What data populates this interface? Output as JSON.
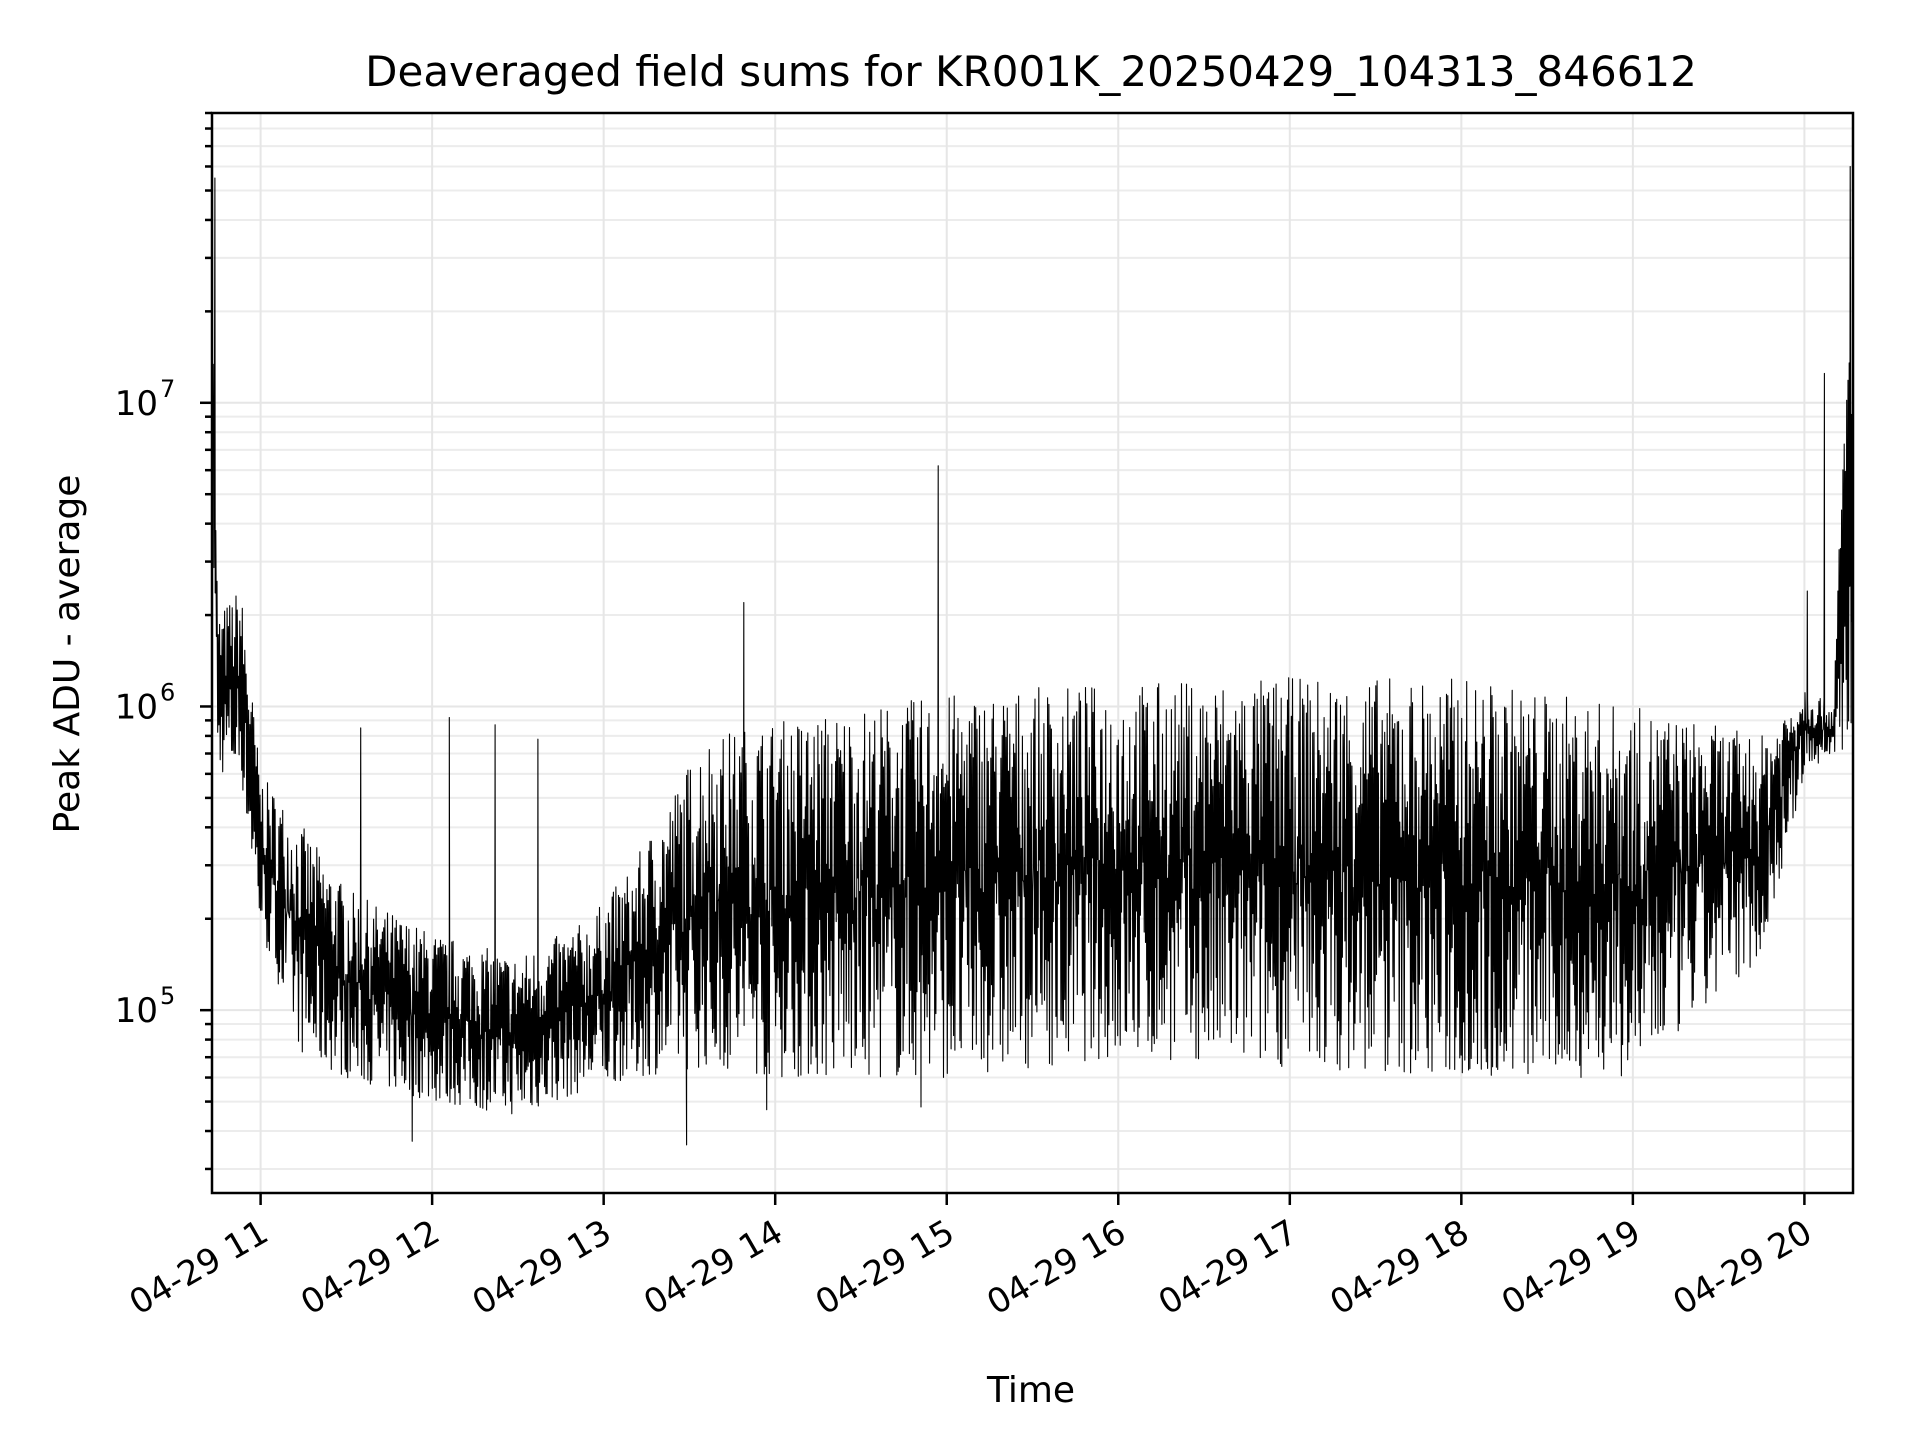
{
  "chart_data": {
    "type": "line",
    "title": "Deaveraged field sums for KR001K_20250429_104313_846612",
    "xlabel": "Time",
    "ylabel": "Peak ADU - average",
    "yscale": "log",
    "ylim": [
      25000,
      90000000
    ],
    "xlim": [
      "2025-04-29 10:43",
      "2025-04-29 20:17"
    ],
    "grid": true,
    "grid_minor_y": true,
    "x_tick_labels": [
      {
        "t": "2025-04-29 11:00",
        "label": "04-29 11"
      },
      {
        "t": "2025-04-29 12:00",
        "label": "04-29 12"
      },
      {
        "t": "2025-04-29 13:00",
        "label": "04-29 13"
      },
      {
        "t": "2025-04-29 14:00",
        "label": "04-29 14"
      },
      {
        "t": "2025-04-29 15:00",
        "label": "04-29 15"
      },
      {
        "t": "2025-04-29 16:00",
        "label": "04-29 16"
      },
      {
        "t": "2025-04-29 17:00",
        "label": "04-29 17"
      },
      {
        "t": "2025-04-29 18:00",
        "label": "04-29 18"
      },
      {
        "t": "2025-04-29 19:00",
        "label": "04-29 19"
      },
      {
        "t": "2025-04-29 20:00",
        "label": "04-29 20"
      }
    ],
    "y_ticks": [
      {
        "value": 100000,
        "base": "10",
        "exp": "5"
      },
      {
        "value": 1000000,
        "base": "10",
        "exp": "6"
      },
      {
        "value": 10000000,
        "base": "10",
        "exp": "7"
      }
    ],
    "series": [
      {
        "color": "#000000",
        "envelope": [
          {
            "t": "2025-04-29 10:43",
            "low": 5000000,
            "high": 55000000
          },
          {
            "t": "2025-04-29 10:45",
            "low": 600000,
            "high": 2000000
          },
          {
            "t": "2025-04-29 10:53",
            "low": 600000,
            "high": 2500000
          },
          {
            "t": "2025-04-29 11:00",
            "low": 180000,
            "high": 600000
          },
          {
            "t": "2025-04-29 11:15",
            "low": 70000,
            "high": 400000
          },
          {
            "t": "2025-04-29 11:30",
            "low": 60000,
            "high": 250000
          },
          {
            "t": "2025-04-29 12:00",
            "low": 50000,
            "high": 180000
          },
          {
            "t": "2025-04-29 12:30",
            "low": 45000,
            "high": 150000
          },
          {
            "t": "2025-04-29 12:55",
            "low": 55000,
            "high": 200000
          },
          {
            "t": "2025-04-29 13:10",
            "low": 60000,
            "high": 300000
          },
          {
            "t": "2025-04-29 13:35",
            "low": 65000,
            "high": 800000
          },
          {
            "t": "2025-04-29 14:00",
            "low": 60000,
            "high": 900000
          },
          {
            "t": "2025-04-29 15:00",
            "low": 60000,
            "high": 1100000
          },
          {
            "t": "2025-04-29 16:00",
            "low": 70000,
            "high": 1200000
          },
          {
            "t": "2025-04-29 17:00",
            "low": 65000,
            "high": 1250000
          },
          {
            "t": "2025-04-29 18:00",
            "low": 60000,
            "high": 1250000
          },
          {
            "t": "2025-04-29 19:00",
            "low": 60000,
            "high": 1000000
          },
          {
            "t": "2025-04-29 19:45",
            "low": 150000,
            "high": 800000
          },
          {
            "t": "2025-04-29 20:00",
            "low": 600000,
            "high": 1200000
          },
          {
            "t": "2025-04-29 20:10",
            "low": 700000,
            "high": 1000000
          },
          {
            "t": "2025-04-29 20:17",
            "low": 700000,
            "high": 55000000
          }
        ],
        "spikes": [
          {
            "t": "2025-04-29 10:44",
            "value": 55000000
          },
          {
            "t": "2025-04-29 11:35",
            "value": 850000
          },
          {
            "t": "2025-04-29 12:06",
            "value": 920000
          },
          {
            "t": "2025-04-29 12:22",
            "value": 870000
          },
          {
            "t": "2025-04-29 12:37",
            "value": 780000
          },
          {
            "t": "2025-04-29 13:49",
            "value": 2200000
          },
          {
            "t": "2025-04-29 14:57",
            "value": 6200000
          },
          {
            "t": "2025-04-29 20:01",
            "value": 2400000
          },
          {
            "t": "2025-04-29 20:07",
            "value": 12500000
          },
          {
            "t": "2025-04-29 20:16",
            "value": 60000000
          }
        ],
        "dips": [
          {
            "t": "2025-04-29 11:53",
            "value": 37000
          },
          {
            "t": "2025-04-29 13:29",
            "value": 36000
          },
          {
            "t": "2025-04-29 13:57",
            "value": 47000
          },
          {
            "t": "2025-04-29 14:51",
            "value": 48000
          }
        ]
      }
    ]
  }
}
